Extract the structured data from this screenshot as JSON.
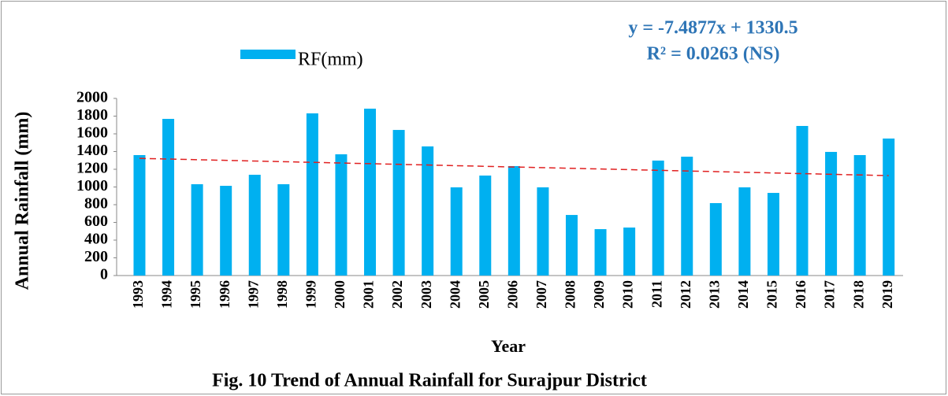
{
  "chart_data": {
    "type": "bar",
    "title": "Fig. 10 Trend of Annual Rainfall for Surajpur District",
    "xlabel": "Year",
    "ylabel": "Annual Rainfall (mm)",
    "categories": [
      "1993",
      "1994",
      "1995",
      "1996",
      "1997",
      "1998",
      "1999",
      "2000",
      "2001",
      "2002",
      "2003",
      "2004",
      "2005",
      "2006",
      "2007",
      "2008",
      "2009",
      "2010",
      "2011",
      "2012",
      "2013",
      "2014",
      "2015",
      "2016",
      "2017",
      "2018",
      "2019"
    ],
    "series": [
      {
        "name": "RF(mm)",
        "color": "#00b0f0",
        "values": [
          1360,
          1769,
          1031,
          1013,
          1138,
          1031,
          1831,
          1369,
          1884,
          1644,
          1458,
          996,
          1129,
          1236,
          996,
          684,
          524,
          542,
          1298,
          1342,
          818,
          996,
          933,
          1689,
          1396,
          1360,
          1547
        ]
      }
    ],
    "ylim": [
      0,
      2000
    ],
    "yticks": [
      0,
      200,
      400,
      600,
      800,
      1000,
      1200,
      1400,
      1600,
      1800,
      2000
    ],
    "trend": {
      "equation": "y = -7.4877x + 1330.5",
      "r2_label": "R² = 0.0263  (NS)",
      "slope": -7.4877,
      "intercept": 1330.5,
      "color": "#e02020",
      "text_color": "#2e75b6"
    }
  }
}
